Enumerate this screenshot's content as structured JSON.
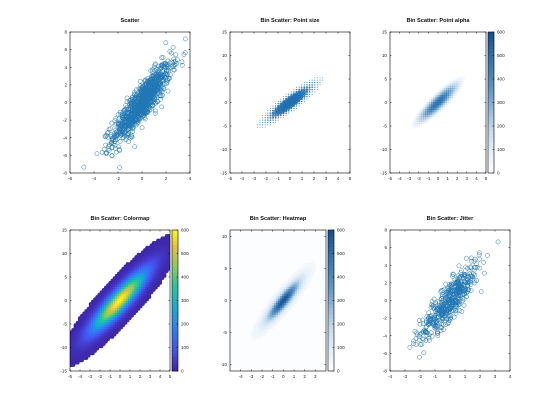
{
  "chart_data": [
    {
      "type": "scatter",
      "title": "Scatter",
      "xlim": [
        -6,
        4
      ],
      "ylim": [
        -8,
        8
      ],
      "xticks": [
        "-6",
        "-4",
        "-2",
        "0",
        "2",
        "4"
      ],
      "yticks": [
        "-8",
        "-6",
        "-4",
        "-2",
        "0",
        "2",
        "4",
        "6",
        "8"
      ],
      "marker": "open-circle",
      "color": "#1f77b4",
      "series": [
        {
          "distribution": {
            "mean": [
              0,
              0
            ],
            "std": [
              1.2,
              2.2
            ],
            "correlation": 0.88,
            "count": 1000
          }
        }
      ]
    },
    {
      "type": "scatter",
      "title": "Bin Scatter: Point size",
      "xlim": [
        -5,
        5
      ],
      "ylim": [
        -15,
        15
      ],
      "xticks": [
        "-5",
        "-4",
        "-3",
        "-2",
        "-1",
        "0",
        "1",
        "2",
        "3",
        "4",
        "5"
      ],
      "yticks": [
        "-15",
        "-10",
        "-5",
        "0",
        "5",
        "10",
        "15"
      ],
      "encoding": "point size",
      "color": "#1f6fb0",
      "series": [
        {
          "distribution": {
            "mean": [
              0,
              0
            ],
            "std": [
              1,
              2
            ],
            "correlation": 0.9
          }
        }
      ]
    },
    {
      "type": "scatter",
      "title": "Bin Scatter: Point alpha",
      "xlim": [
        -5,
        5
      ],
      "ylim": [
        -15,
        15
      ],
      "xticks": [
        "-5",
        "-4",
        "-3",
        "-2",
        "-1",
        "0",
        "1",
        "2",
        "3",
        "4",
        "5"
      ],
      "yticks": [
        "-15",
        "-10",
        "-5",
        "0",
        "5",
        "10",
        "15"
      ],
      "encoding": "point alpha",
      "color": "#1f6fb0",
      "colorbar": {
        "min": 0,
        "max": 600,
        "ticks": [
          "0",
          "100",
          "200",
          "300",
          "400",
          "500",
          "600"
        ],
        "colormap": "white-to-blue"
      },
      "series": [
        {
          "distribution": {
            "mean": [
              0,
              0
            ],
            "std": [
              1,
              2
            ],
            "correlation": 0.9
          }
        }
      ]
    },
    {
      "type": "scatter",
      "title": "Bin Scatter: Colormap",
      "xlim": [
        -5,
        5
      ],
      "ylim": [
        -15,
        15
      ],
      "xticks": [
        "-5",
        "-4",
        "-3",
        "-2",
        "-1",
        "0",
        "1",
        "2",
        "3",
        "4",
        "5"
      ],
      "yticks": [
        "-15",
        "-10",
        "-5",
        "0",
        "5",
        "10",
        "15"
      ],
      "encoding": "color",
      "colorbar": {
        "min": 0,
        "max": 600,
        "ticks": [
          "0",
          "100",
          "200",
          "300",
          "400",
          "500",
          "600"
        ],
        "colormap": "parula"
      },
      "series": [
        {
          "distribution": {
            "mean": [
              0,
              0
            ],
            "std": [
              1.8,
              4.2
            ],
            "correlation": 0.9
          }
        }
      ]
    },
    {
      "type": "heatmap",
      "title": "Bin Scatter: Heatmap",
      "xlim": [
        -5,
        4
      ],
      "ylim": [
        -11,
        11
      ],
      "xticks": [
        "-4",
        "-3",
        "-2",
        "-1",
        "0",
        "1",
        "2",
        "3"
      ],
      "yticks": [
        "-10",
        "-5",
        "0",
        "5",
        "10"
      ],
      "colorbar": {
        "min": 0,
        "max": 600,
        "ticks": [
          "0",
          "100",
          "200",
          "300",
          "400",
          "500",
          "600"
        ],
        "colormap": "white-to-blue"
      },
      "series": [
        {
          "distribution": {
            "mean": [
              0,
              0
            ],
            "std": [
              1,
              2
            ],
            "correlation": 0.9
          }
        }
      ]
    },
    {
      "type": "scatter",
      "title": "Bin Scatter: Jitter",
      "xlim": [
        -4,
        4
      ],
      "ylim": [
        -8,
        8
      ],
      "xticks": [
        "-4",
        "-3",
        "-2",
        "-1",
        "0",
        "1",
        "2",
        "3",
        "4"
      ],
      "yticks": [
        "-8",
        "-6",
        "-4",
        "-2",
        "0",
        "2",
        "4",
        "6",
        "8"
      ],
      "marker": "open-circle",
      "color": "#1f77b4",
      "series": [
        {
          "distribution": {
            "mean": [
              0,
              0
            ],
            "std": [
              1,
              2.2
            ],
            "correlation": 0.88,
            "count": 500
          }
        }
      ]
    }
  ]
}
